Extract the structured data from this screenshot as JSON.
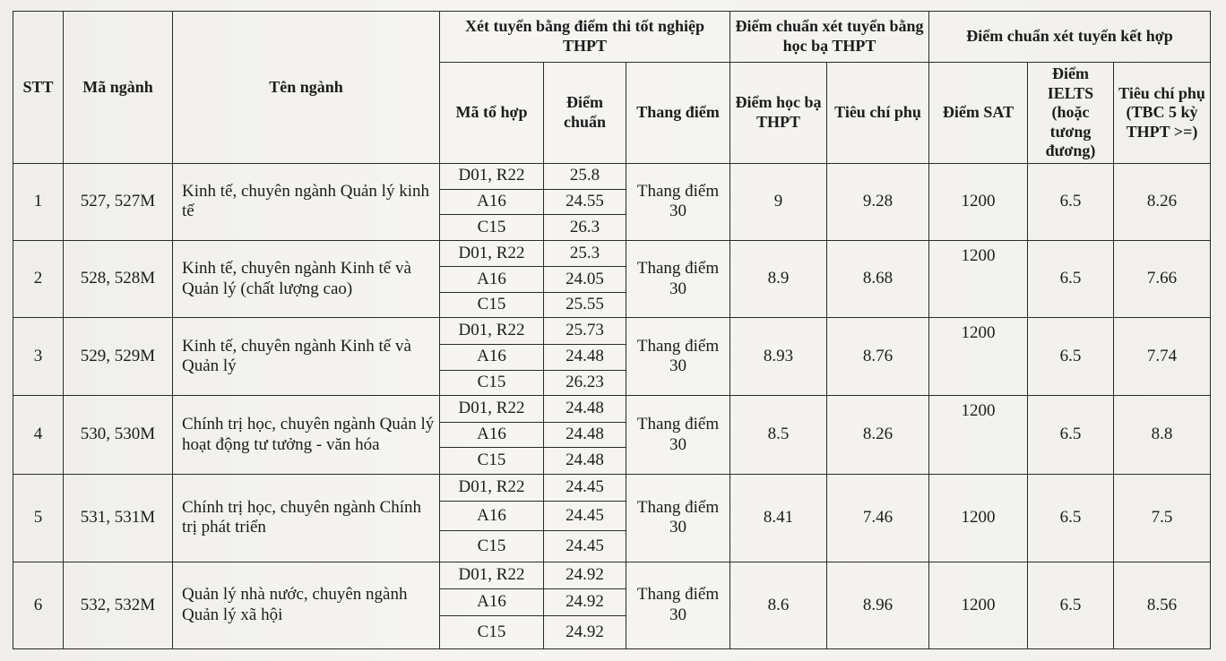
{
  "headers": {
    "stt": "STT",
    "ma_nganh": "Mã ngành",
    "ten_nganh": "Tên ngành",
    "group_thpt": "Xét tuyển bằng điểm thi tốt nghiệp THPT",
    "group_hocba": "Điểm chuẩn xét tuyển bằng học bạ THPT",
    "group_ketHop": "Điểm chuẩn xét tuyển kết hợp",
    "ma_to_hop": "Mã tổ hợp",
    "diem_chuan": "Điểm chuẩn",
    "thang_diem": "Thang điểm",
    "diem_hoc_ba": "Điểm học bạ THPT",
    "tieu_chi_phu": "Tiêu chí phụ",
    "diem_sat": "Điểm SAT",
    "diem_ielts": "Điểm IELTS (hoặc tương đương)",
    "tieu_chi_phu_tbc": "Tiêu chí phụ (TBC 5 kỳ THPT >=)"
  },
  "rows": [
    {
      "stt": "1",
      "code": "527, 527M",
      "name": "Kinh tế, chuyên ngành Quản lý kinh tế",
      "combos": [
        {
          "code": "D01, R22",
          "score": "25.8"
        },
        {
          "code": "A16",
          "score": "24.55"
        },
        {
          "code": "C15",
          "score": "26.3"
        }
      ],
      "scale": "Thang điểm 30",
      "hocba": "9",
      "hocba_tieuchi": "9.28",
      "sat": "1200",
      "ielts": "6.5",
      "tbc": "8.26"
    },
    {
      "stt": "2",
      "code": "528, 528M",
      "name": "Kinh tế, chuyên ngành Kinh tế và Quản lý (chất lượng cao)",
      "combos": [
        {
          "code": "D01, R22",
          "score": "25.3"
        },
        {
          "code": "A16",
          "score": "24.05"
        },
        {
          "code": "C15",
          "score": "25.55"
        }
      ],
      "scale": "Thang điểm 30",
      "hocba": "8.9",
      "hocba_tieuchi": "8.68",
      "sat": "1200",
      "ielts": "6.5",
      "tbc": "7.66"
    },
    {
      "stt": "3",
      "code": "529, 529M",
      "name": "Kinh tế, chuyên ngành Kinh tế và Quản lý",
      "combos": [
        {
          "code": "D01, R22",
          "score": "25.73"
        },
        {
          "code": "A16",
          "score": "24.48"
        },
        {
          "code": "C15",
          "score": "26.23"
        }
      ],
      "scale": "Thang điểm 30",
      "hocba": "8.93",
      "hocba_tieuchi": "8.76",
      "sat": "1200",
      "ielts": "6.5",
      "tbc": "7.74"
    },
    {
      "stt": "4",
      "code": "530, 530M",
      "name": "Chính trị học, chuyên ngành Quản lý hoạt động tư tưởng - văn hóa",
      "combos": [
        {
          "code": "D01, R22",
          "score": "24.48"
        },
        {
          "code": "A16",
          "score": "24.48"
        },
        {
          "code": "C15",
          "score": "24.48"
        }
      ],
      "scale": "Thang điểm 30",
      "hocba": "8.5",
      "hocba_tieuchi": "8.26",
      "sat": "1200",
      "ielts": "6.5",
      "tbc": "8.8"
    },
    {
      "stt": "5",
      "code": "531, 531M",
      "name": "Chính trị học, chuyên ngành Chính trị phát triển",
      "combos": [
        {
          "code": "D01, R22",
          "score": "24.45"
        },
        {
          "code": "A16",
          "score": "24.45"
        },
        {
          "code": "C15",
          "score": "24.45"
        }
      ],
      "scale": "Thang điểm 30",
      "hocba": "8.41",
      "hocba_tieuchi": "7.46",
      "sat": "1200",
      "ielts": "6.5",
      "tbc": "7.5"
    },
    {
      "stt": "6",
      "code": "532, 532M",
      "name": "Quản lý nhà nước, chuyên ngành Quản lý xã hội",
      "combos": [
        {
          "code": "D01, R22",
          "score": "24.92"
        },
        {
          "code": "A16",
          "score": "24.92"
        },
        {
          "code": "C15",
          "score": "24.92"
        }
      ],
      "scale": "Thang điểm 30",
      "hocba": "8.6",
      "hocba_tieuchi": "8.96",
      "sat": "1200",
      "ielts": "6.5",
      "tbc": "8.56"
    }
  ]
}
